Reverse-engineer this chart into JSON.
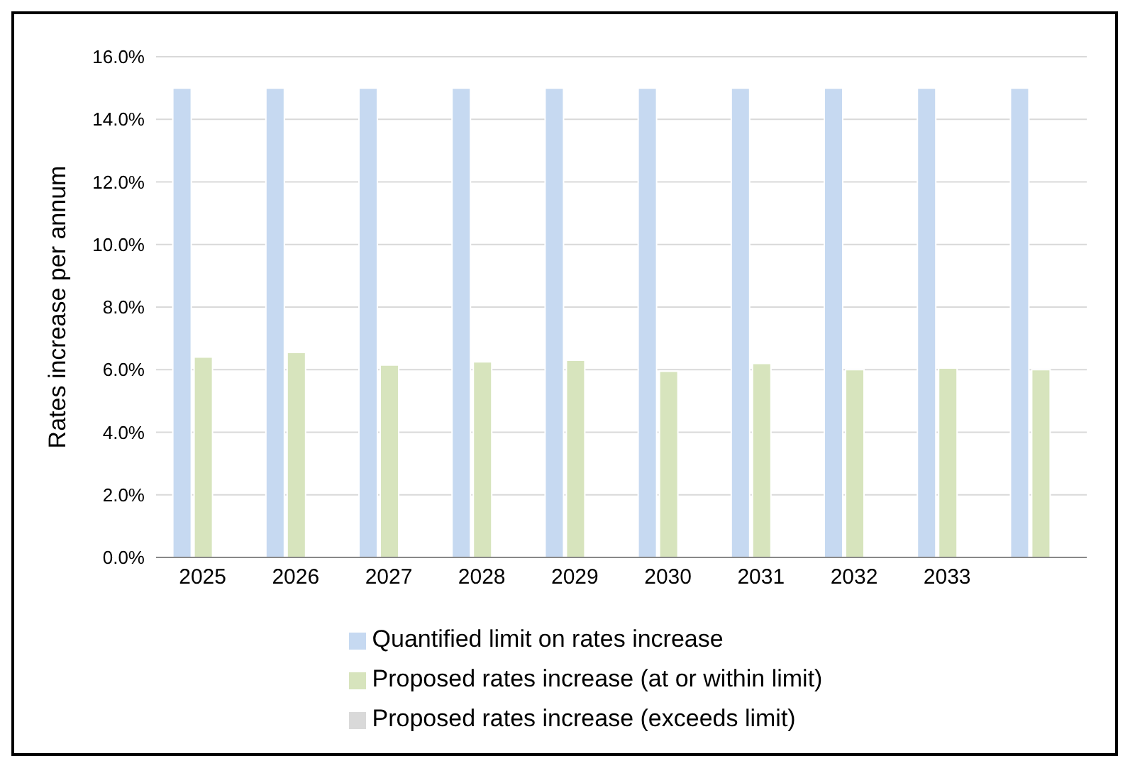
{
  "chart_data": {
    "type": "bar",
    "ylabel": "Rates increase per annum",
    "categories": [
      "2025",
      "2026",
      "2027",
      "2028",
      "2029",
      "2030",
      "2031",
      "2032",
      "2033",
      null
    ],
    "series": [
      {
        "name": "Quantified limit on rates increase",
        "color": "#c6d9f1",
        "values": [
          15,
          15,
          15,
          15,
          15,
          15,
          15,
          15,
          15,
          15
        ]
      },
      {
        "name": "Proposed rates increase (at or within limit)",
        "color": "#d7e4bd",
        "values": [
          6.4,
          6.55,
          6.15,
          6.25,
          6.3,
          5.95,
          6.2,
          6.0,
          6.05,
          6.0
        ]
      },
      {
        "name": "Proposed rates increase (exceeds limit)",
        "color": "#d9d9d9",
        "values": [
          null,
          null,
          null,
          null,
          null,
          null,
          null,
          null,
          null,
          null
        ]
      }
    ],
    "ylim": [
      0,
      16
    ],
    "yticks": [
      {
        "value": 0,
        "label": "0.0%"
      },
      {
        "value": 2,
        "label": "2.0%"
      },
      {
        "value": 4,
        "label": "4.0%"
      },
      {
        "value": 6,
        "label": "6.0%"
      },
      {
        "value": 8,
        "label": "8.0%"
      },
      {
        "value": 10,
        "label": "10.0%"
      },
      {
        "value": 12,
        "label": "12.0%"
      },
      {
        "value": 14,
        "label": "14.0%"
      },
      {
        "value": 16,
        "label": "16.0%"
      }
    ],
    "grid": "y",
    "legend": "bottom"
  }
}
